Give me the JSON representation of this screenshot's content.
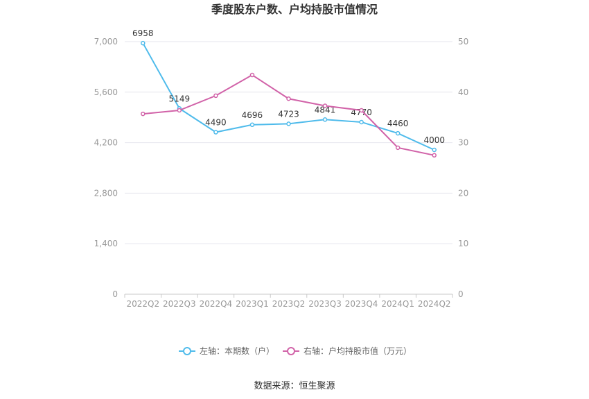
{
  "chart_data": {
    "type": "line",
    "title": "季度股东户数、户均持股市值情况",
    "categories": [
      "2022Q2",
      "2022Q3",
      "2022Q4",
      "2023Q1",
      "2023Q2",
      "2023Q3",
      "2023Q4",
      "2024Q1",
      "2024Q2"
    ],
    "left_axis": {
      "ylim": [
        0,
        7000
      ],
      "ticks": [
        "0",
        "1,400",
        "2,800",
        "4,200",
        "5,600",
        "7,000"
      ]
    },
    "right_axis": {
      "ylim": [
        0,
        50
      ],
      "ticks": [
        "0",
        "10",
        "20",
        "30",
        "40",
        "50"
      ]
    },
    "series": [
      {
        "name": "左轴：本期数（户）",
        "axis": "left",
        "color": "#4fbbeb",
        "values": [
          6958,
          5149,
          4490,
          4696,
          4723,
          4841,
          4770,
          4460,
          4000
        ],
        "labels": [
          "6958",
          "5149",
          "4490",
          "4696",
          "4723",
          "4841",
          "4770",
          "4460",
          "4000"
        ]
      },
      {
        "name": "右轴：户均持股市值（万元）",
        "axis": "right",
        "color": "#d162a8",
        "values": [
          35.7,
          36.4,
          39.3,
          43.4,
          38.7,
          37.3,
          36.4,
          29.0,
          27.5
        ]
      }
    ],
    "grid": true,
    "legend": "bottom-center",
    "source": "数据来源：恒生聚源"
  }
}
